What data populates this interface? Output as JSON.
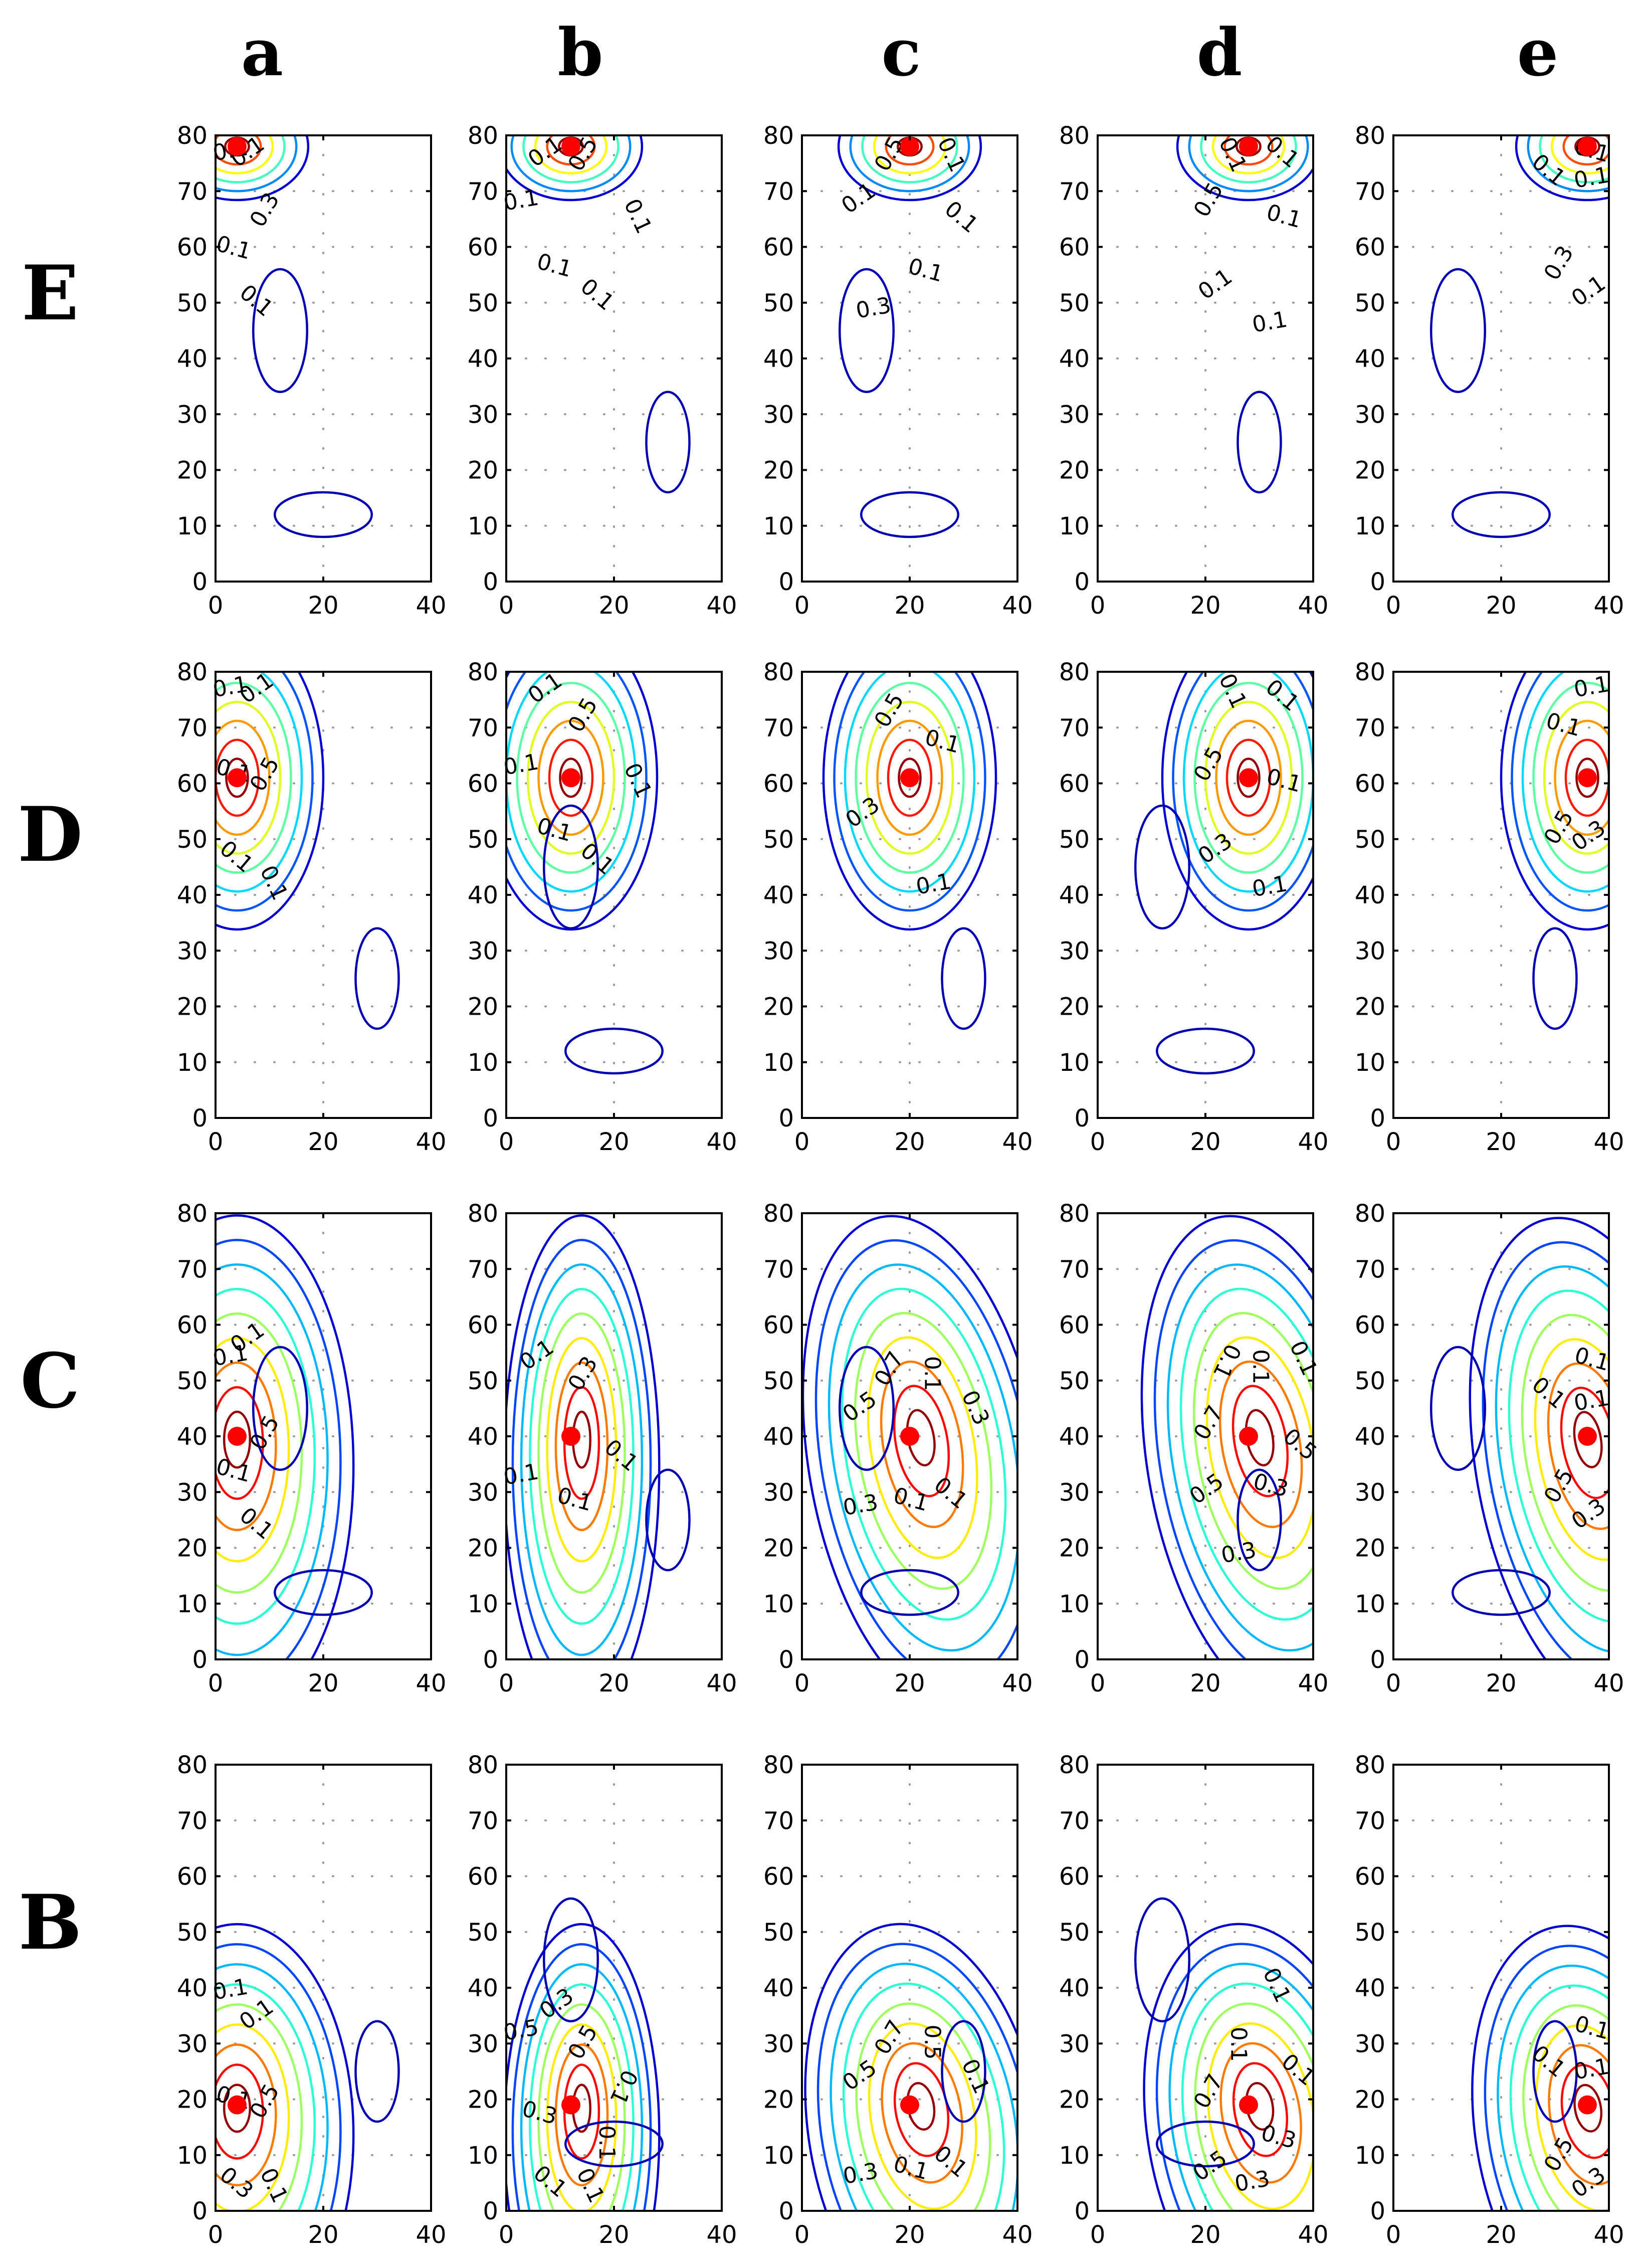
{
  "figure": {
    "column_labels": [
      "a",
      "b",
      "c",
      "d",
      "e"
    ],
    "row_labels": [
      "E",
      "D",
      "C",
      "B"
    ]
  },
  "style": {
    "marker_color": "#ff0000",
    "axis_color": "#000000",
    "grid_color": "#9a9a9a"
  },
  "chart_data": {
    "type": "contour",
    "description_axes": {
      "xlim": [
        0,
        40
      ],
      "ylim": [
        0,
        80
      ],
      "xticks": [
        0,
        20,
        40
      ],
      "yticks": [
        0,
        10,
        20,
        30,
        40,
        50,
        60,
        70,
        80
      ]
    },
    "colormap": "jet",
    "levels": [
      0.1,
      0.2,
      0.3,
      0.4,
      0.5,
      0.6,
      0.7,
      0.8,
      0.9
    ],
    "rows": [
      {
        "label": "E",
        "source_y": 78,
        "source_x": [
          4,
          12,
          20,
          28,
          36
        ],
        "panel_labels": [
          [
            "0.3",
            "0.1",
            "0.1",
            "0.1",
            "0.1"
          ],
          [
            "0.5",
            "0.1",
            "0.1",
            "0.1",
            "0.1",
            "0.1"
          ],
          [
            "0.5",
            "0.1",
            "0.3",
            "0.1",
            "0.1",
            "0.1"
          ],
          [
            "0.5",
            "0.1",
            "0.1",
            "0.1",
            "0.1",
            "0.1"
          ],
          [
            "0.3",
            "0.1",
            "0.1",
            "0.1",
            "0.1"
          ]
        ]
      },
      {
        "label": "D",
        "source_y": 61,
        "source_x": [
          4,
          12,
          20,
          28,
          36
        ],
        "panel_labels": [
          [
            "0.5",
            "0.1",
            "0.1",
            "0.1",
            "0.1",
            "0.1"
          ],
          [
            "0.5",
            "0.1",
            "0.1",
            "0.1",
            "0.1",
            "0.1"
          ],
          [
            "0.5",
            "0.3",
            "0.1",
            "0.1"
          ],
          [
            "0.5",
            "0.3",
            "0.1",
            "0.1",
            "0.1",
            "0.1"
          ],
          [
            "0.5",
            "0.3",
            "0.1",
            "0.1"
          ]
        ]
      },
      {
        "label": "C",
        "source_y": 40,
        "source_x": [
          4,
          12,
          20,
          28,
          36
        ],
        "panel_labels": [
          [
            "0.5",
            "0.1",
            "0.1",
            "0.1",
            "0.1"
          ],
          [
            "0.3",
            "0.1",
            "0.1",
            "0.1",
            "0.1"
          ],
          [
            "0.7",
            "0.5",
            "0.3",
            "0.1",
            "0.1",
            "0.3",
            "0.1"
          ],
          [
            "0.7",
            "0.5",
            "0.3",
            "0.3",
            "0.5",
            "0.1",
            "0.1",
            "0.1"
          ],
          [
            "0.5",
            "0.3",
            "0.1",
            "0.1",
            "0.1"
          ]
        ]
      },
      {
        "label": "B",
        "source_y": 19,
        "source_x": [
          4,
          12,
          20,
          28,
          36
        ],
        "panel_labels": [
          [
            "0.5",
            "0.1",
            "0.1",
            "0.1",
            "0.3",
            "0.1"
          ],
          [
            "0.5",
            "0.3",
            "0.5",
            "0.3",
            "0.1",
            "0.1",
            "0.1",
            "0.1"
          ],
          [
            "0.7",
            "0.5",
            "0.3",
            "0.1",
            "0.1",
            "0.1",
            "0.5"
          ],
          [
            "0.7",
            "0.5",
            "0.3",
            "0.3",
            "0.1",
            "0.1",
            "0.1"
          ],
          [
            "0.5",
            "0.3",
            "0.1",
            "0.1",
            "0.1"
          ]
        ]
      }
    ]
  }
}
